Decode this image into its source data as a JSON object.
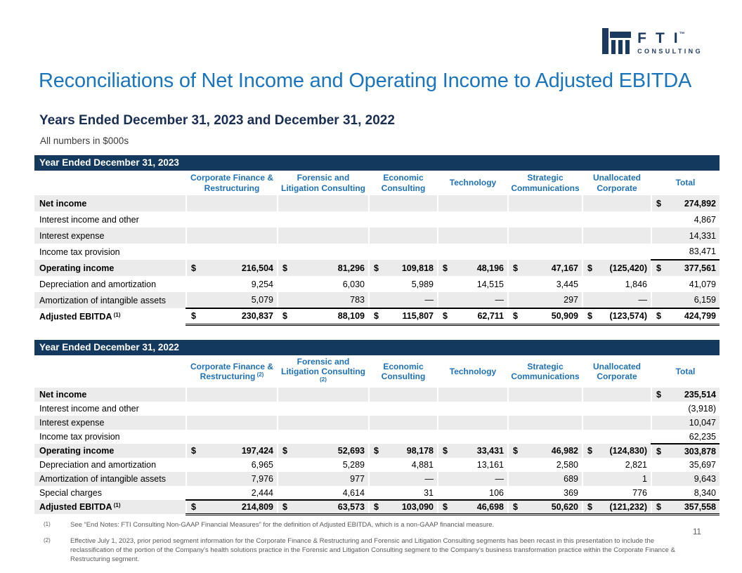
{
  "logo": {
    "letters": "FTI",
    "trademark": "™",
    "subtext": "CONSULTING"
  },
  "title": "Reconciliations of Net Income and Operating Income to Adjusted EBITDA",
  "subtitle": "Years Ended December 31, 2023 and December 31, 2022",
  "units_note": "All numbers in $000s",
  "page_number": "11",
  "colors": {
    "title_blue": "#1B75BC",
    "header_blue": "#2071B5",
    "banner_navy": "#14395F",
    "subtitle_navy": "#1A2E52",
    "logo_navy": "#1C3A5E",
    "row_shade": "#EBEBEB",
    "footnote_gray": "#595959"
  },
  "tables": [
    {
      "banner": "Year Ended December 31, 2023",
      "columns": [
        {
          "label": "Corporate Finance & Restructuring",
          "sup": ""
        },
        {
          "label": "Forensic and Litigation Consulting",
          "sup": ""
        },
        {
          "label": "Economic Consulting",
          "sup": ""
        },
        {
          "label": "Technology",
          "sup": ""
        },
        {
          "label": "Strategic Communications",
          "sup": ""
        },
        {
          "label": "Unallocated Corporate",
          "sup": ""
        },
        {
          "label": "Total",
          "sup": ""
        }
      ],
      "rows": [
        {
          "label": "Net income",
          "sup": "",
          "bold": true,
          "shaded": true,
          "dollars": [
            0,
            0,
            0,
            0,
            0,
            0,
            1
          ],
          "values": [
            "",
            "",
            "",
            "",
            "",
            "",
            "274,892"
          ],
          "rule_bottom": "",
          "rule_cols": ""
        },
        {
          "label": "Interest income and other",
          "sup": "",
          "bold": false,
          "shaded": false,
          "dollars": [
            0,
            0,
            0,
            0,
            0,
            0,
            0
          ],
          "values": [
            "",
            "",
            "",
            "",
            "",
            "",
            "4,867"
          ],
          "rule_bottom": "",
          "rule_cols": ""
        },
        {
          "label": "Interest expense",
          "sup": "",
          "bold": false,
          "shaded": true,
          "dollars": [
            0,
            0,
            0,
            0,
            0,
            0,
            0
          ],
          "values": [
            "",
            "",
            "",
            "",
            "",
            "",
            "14,331"
          ],
          "rule_bottom": "",
          "rule_cols": ""
        },
        {
          "label": "Income tax provision",
          "sup": "",
          "bold": false,
          "shaded": false,
          "dollars": [
            0,
            0,
            0,
            0,
            0,
            0,
            0
          ],
          "values": [
            "",
            "",
            "",
            "",
            "",
            "",
            "83,471"
          ],
          "rule_bottom": "single",
          "rule_cols": "total"
        },
        {
          "label": "Operating income",
          "sup": "",
          "bold": true,
          "shaded": true,
          "dollars": [
            1,
            1,
            1,
            1,
            1,
            1,
            1
          ],
          "values": [
            "216,504",
            "81,296",
            "109,818",
            "48,196",
            "47,167",
            "(125,420)",
            "377,561"
          ],
          "rule_bottom": "",
          "rule_cols": ""
        },
        {
          "label": "Depreciation and amortization",
          "sup": "",
          "bold": false,
          "shaded": false,
          "dollars": [
            0,
            0,
            0,
            0,
            0,
            0,
            0
          ],
          "values": [
            "9,254",
            "6,030",
            "5,989",
            "14,515",
            "3,445",
            "1,846",
            "41,079"
          ],
          "rule_bottom": "",
          "rule_cols": ""
        },
        {
          "label": "Amortization of intangible assets",
          "sup": "",
          "bold": false,
          "shaded": true,
          "dollars": [
            0,
            0,
            0,
            0,
            0,
            0,
            0
          ],
          "values": [
            "5,079",
            "783",
            "—",
            "—",
            "297",
            "—",
            "6,159"
          ],
          "rule_bottom": "single",
          "rule_cols": "numeric"
        },
        {
          "label": "Adjusted EBITDA",
          "sup": "(1)",
          "bold": true,
          "shaded": false,
          "dollars": [
            1,
            1,
            1,
            1,
            1,
            1,
            1
          ],
          "values": [
            "230,837",
            "88,109",
            "115,807",
            "62,711",
            "50,909",
            "(123,574)",
            "424,799"
          ],
          "rule_bottom": "double",
          "rule_cols": "numeric"
        }
      ]
    },
    {
      "banner": "Year Ended December 31, 2022",
      "columns": [
        {
          "label": "Corporate Finance & Restructuring",
          "sup": "(2)"
        },
        {
          "label": "Forensic and Litigation Consulting",
          "sup": "(2)"
        },
        {
          "label": "Economic Consulting",
          "sup": ""
        },
        {
          "label": "Technology",
          "sup": ""
        },
        {
          "label": "Strategic Communications",
          "sup": ""
        },
        {
          "label": "Unallocated Corporate",
          "sup": ""
        },
        {
          "label": "Total",
          "sup": ""
        }
      ],
      "rows": [
        {
          "label": "Net income",
          "sup": "",
          "bold": true,
          "shaded": true,
          "dollars": [
            0,
            0,
            0,
            0,
            0,
            0,
            1
          ],
          "values": [
            "",
            "",
            "",
            "",
            "",
            "",
            "235,514"
          ],
          "rule_bottom": "",
          "rule_cols": ""
        },
        {
          "label": "Interest income and other",
          "sup": "",
          "bold": false,
          "shaded": false,
          "dollars": [
            0,
            0,
            0,
            0,
            0,
            0,
            0
          ],
          "values": [
            "",
            "",
            "",
            "",
            "",
            "",
            "(3,918)"
          ],
          "rule_bottom": "",
          "rule_cols": ""
        },
        {
          "label": "Interest expense",
          "sup": "",
          "bold": false,
          "shaded": true,
          "dollars": [
            0,
            0,
            0,
            0,
            0,
            0,
            0
          ],
          "values": [
            "",
            "",
            "",
            "",
            "",
            "",
            "10,047"
          ],
          "rule_bottom": "",
          "rule_cols": ""
        },
        {
          "label": "Income tax provision",
          "sup": "",
          "bold": false,
          "shaded": false,
          "dollars": [
            0,
            0,
            0,
            0,
            0,
            0,
            0
          ],
          "values": [
            "",
            "",
            "",
            "",
            "",
            "",
            "62,235"
          ],
          "rule_bottom": "single",
          "rule_cols": "total"
        },
        {
          "label": "Operating income",
          "sup": "",
          "bold": true,
          "shaded": true,
          "dollars": [
            1,
            1,
            1,
            1,
            1,
            1,
            1
          ],
          "values": [
            "197,424",
            "52,693",
            "98,178",
            "33,431",
            "46,982",
            "(124,830)",
            "303,878"
          ],
          "rule_bottom": "",
          "rule_cols": ""
        },
        {
          "label": "Depreciation and amortization",
          "sup": "",
          "bold": false,
          "shaded": false,
          "dollars": [
            0,
            0,
            0,
            0,
            0,
            0,
            0
          ],
          "values": [
            "6,965",
            "5,289",
            "4,881",
            "13,161",
            "2,580",
            "2,821",
            "35,697"
          ],
          "rule_bottom": "",
          "rule_cols": ""
        },
        {
          "label": "Amortization of intangible assets",
          "sup": "",
          "bold": false,
          "shaded": true,
          "dollars": [
            0,
            0,
            0,
            0,
            0,
            0,
            0
          ],
          "values": [
            "7,976",
            "977",
            "—",
            "—",
            "689",
            "1",
            "9,643"
          ],
          "rule_bottom": "",
          "rule_cols": ""
        },
        {
          "label": "Special charges",
          "sup": "",
          "bold": false,
          "shaded": false,
          "dollars": [
            0,
            0,
            0,
            0,
            0,
            0,
            0
          ],
          "values": [
            "2,444",
            "4,614",
            "31",
            "106",
            "369",
            "776",
            "8,340"
          ],
          "rule_bottom": "single",
          "rule_cols": "numeric"
        },
        {
          "label": "Adjusted EBITDA",
          "sup": "(1)",
          "bold": true,
          "shaded": true,
          "dollars": [
            1,
            1,
            1,
            1,
            1,
            1,
            1
          ],
          "values": [
            "214,809",
            "63,573",
            "103,090",
            "46,698",
            "50,620",
            "(121,232)",
            "357,558"
          ],
          "rule_bottom": "double",
          "rule_cols": "numeric"
        }
      ]
    }
  ],
  "footnotes": [
    {
      "marker": "(1)",
      "text": "See “End Notes: FTI Consulting Non-GAAP Financial Measures” for the definition of Adjusted EBITDA, which is a non-GAAP financial measure."
    },
    {
      "marker": "(2)",
      "text": "Effective July 1, 2023, prior period segment information for the Corporate Finance & Restructuring and Forensic and Litigation Consulting segments has been recast in this presentation to include the reclassification of the portion of the Company’s health solutions practice in the Forensic and Litigation Consulting segment to the Company’s business transformation practice within the Corporate Finance & Restructuring segment."
    }
  ]
}
